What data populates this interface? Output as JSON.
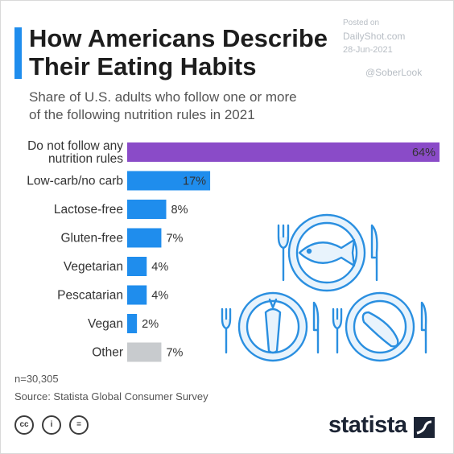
{
  "header": {
    "title_line1": "How Americans Describe",
    "title_line2": "Their Eating Habits",
    "subtitle_line1": "Share of U.S. adults who follow one or more",
    "subtitle_line2": "of the following nutrition rules in 2021"
  },
  "watermark": {
    "posted_on": "Posted on",
    "site": "DailyShot.com",
    "date": "28-Jun-2021",
    "handle": "@SoberLook"
  },
  "chart_data": {
    "type": "bar",
    "orientation": "horizontal",
    "categories": [
      [
        "Do not follow any",
        "nutrition rules"
      ],
      [
        "Low-carb/no carb"
      ],
      [
        "Lactose-free"
      ],
      [
        "Gluten-free"
      ],
      [
        "Vegetarian"
      ],
      [
        "Pescatarian"
      ],
      [
        "Vegan"
      ],
      [
        "Other"
      ]
    ],
    "values": [
      64,
      17,
      8,
      7,
      4,
      4,
      2,
      7
    ],
    "value_labels": [
      "64%",
      "17%",
      "8%",
      "7%",
      "4%",
      "4%",
      "2%",
      "7%"
    ],
    "unit": "%",
    "xlim": [
      0,
      64
    ],
    "colors": [
      "#8a4bc8",
      "#1f8ded",
      "#1f8ded",
      "#1f8ded",
      "#1f8ded",
      "#1f8ded",
      "#1f8ded",
      "#c8cbce"
    ],
    "grid": false,
    "legend": "none"
  },
  "footer": {
    "sample": "n=30,305",
    "source": "Source: Statista Global Consumer Survey",
    "brand": "statista",
    "license_icons": [
      "cc-icon",
      "attribution-icon",
      "no-derivatives-icon"
    ],
    "license_glyphs": [
      "cc",
      "i",
      "="
    ]
  },
  "illustration": {
    "icons": [
      "fork-icon",
      "plate-fish-icon",
      "knife-icon",
      "carrot-plate-icon",
      "sausage-plate-icon"
    ]
  }
}
